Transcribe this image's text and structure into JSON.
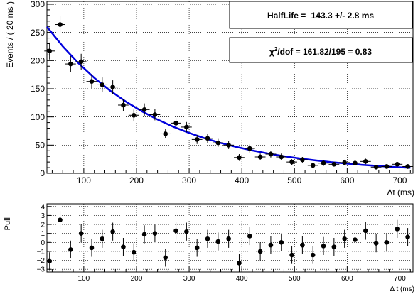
{
  "chart_data": [
    {
      "type": "scatter",
      "title": "",
      "xlabel": "Δt (ms)",
      "ylabel": "Events / ( 20 ms )",
      "xlim": [
        30,
        725
      ],
      "ylim": [
        0,
        305
      ],
      "xticks": [
        100,
        200,
        300,
        400,
        500,
        600,
        700
      ],
      "yticks": [
        0,
        50,
        100,
        150,
        200,
        250,
        300
      ],
      "grid": true,
      "series": [
        {
          "kind": "data",
          "x": [
            35,
            55,
            75,
            95,
            115,
            135,
            155,
            175,
            195,
            215,
            235,
            255,
            275,
            295,
            315,
            335,
            355,
            375,
            395,
            415,
            435,
            455,
            475,
            495,
            515,
            535,
            555,
            575,
            595,
            615,
            635,
            655,
            675,
            695,
            715
          ],
          "y": [
            217,
            264,
            194,
            198,
            163,
            157,
            153,
            121,
            103,
            113,
            104,
            70,
            89,
            82,
            60,
            62,
            54,
            50,
            28,
            44,
            29,
            34,
            29,
            20,
            24,
            14,
            18,
            16,
            19,
            18,
            21,
            11,
            12,
            16,
            12
          ],
          "yerr": [
            15,
            16,
            14,
            14,
            13,
            13,
            12,
            11,
            10,
            11,
            10,
            8,
            9,
            9,
            8,
            8,
            7,
            7,
            6,
            7,
            6,
            6,
            6,
            5,
            5,
            4,
            5,
            4,
            5,
            4,
            5,
            4,
            4,
            4,
            4
          ],
          "xerr": 10
        },
        {
          "kind": "fit",
          "color": "#0000dd",
          "model": "exponential decay",
          "x": [
            30,
            60,
            90,
            120,
            150,
            180,
            210,
            240,
            270,
            300,
            330,
            360,
            390,
            420,
            450,
            480,
            510,
            540,
            570,
            600,
            630,
            660,
            690,
            720
          ],
          "y": [
            260,
            225.3,
            195.2,
            169.2,
            146.6,
            127.0,
            110.1,
            95.4,
            82.6,
            71.6,
            62.0,
            53.8,
            46.6,
            40.4,
            35.0,
            30.3,
            26.3,
            22.8,
            19.7,
            17.1,
            14.8,
            12.8,
            11.1,
            9.7
          ]
        }
      ],
      "annotations": [
        {
          "label": "HalfLife = ",
          "value": "143.3 +/- 2.8 ms"
        },
        {
          "label": "χ",
          "sup": "2",
          "suffix": "/dof = 161.82/195 = 0.83"
        }
      ]
    },
    {
      "type": "scatter",
      "title": "",
      "xlabel": "Δ t (ms)",
      "ylabel": "Pull",
      "xlim": [
        30,
        725
      ],
      "ylim": [
        -3.3,
        4.3
      ],
      "xticks": [
        100,
        200,
        300,
        400,
        500,
        600,
        700
      ],
      "yticks": [
        -3,
        -2,
        -1,
        0,
        1,
        2,
        3,
        4
      ],
      "grid": true,
      "series": [
        {
          "kind": "pull",
          "x": [
            35,
            55,
            75,
            95,
            115,
            135,
            155,
            175,
            195,
            215,
            235,
            255,
            275,
            295,
            315,
            335,
            355,
            375,
            395,
            415,
            435,
            455,
            475,
            495,
            515,
            535,
            555,
            575,
            595,
            615,
            635,
            655,
            675,
            695,
            715
          ],
          "y": [
            -2.1,
            2.5,
            -0.8,
            1.0,
            -0.6,
            0.4,
            1.2,
            -0.5,
            -1.1,
            0.9,
            1.0,
            -1.7,
            1.3,
            1.2,
            -0.6,
            0.4,
            0.1,
            0.4,
            -2.3,
            0.7,
            -1.0,
            -0.3,
            0.0,
            -1.4,
            -0.3,
            -1.4,
            -0.4,
            -0.5,
            0.4,
            0.3,
            1.3,
            -0.1,
            0.0,
            1.5,
            0.6
          ],
          "yerr": 1
        }
      ]
    }
  ]
}
